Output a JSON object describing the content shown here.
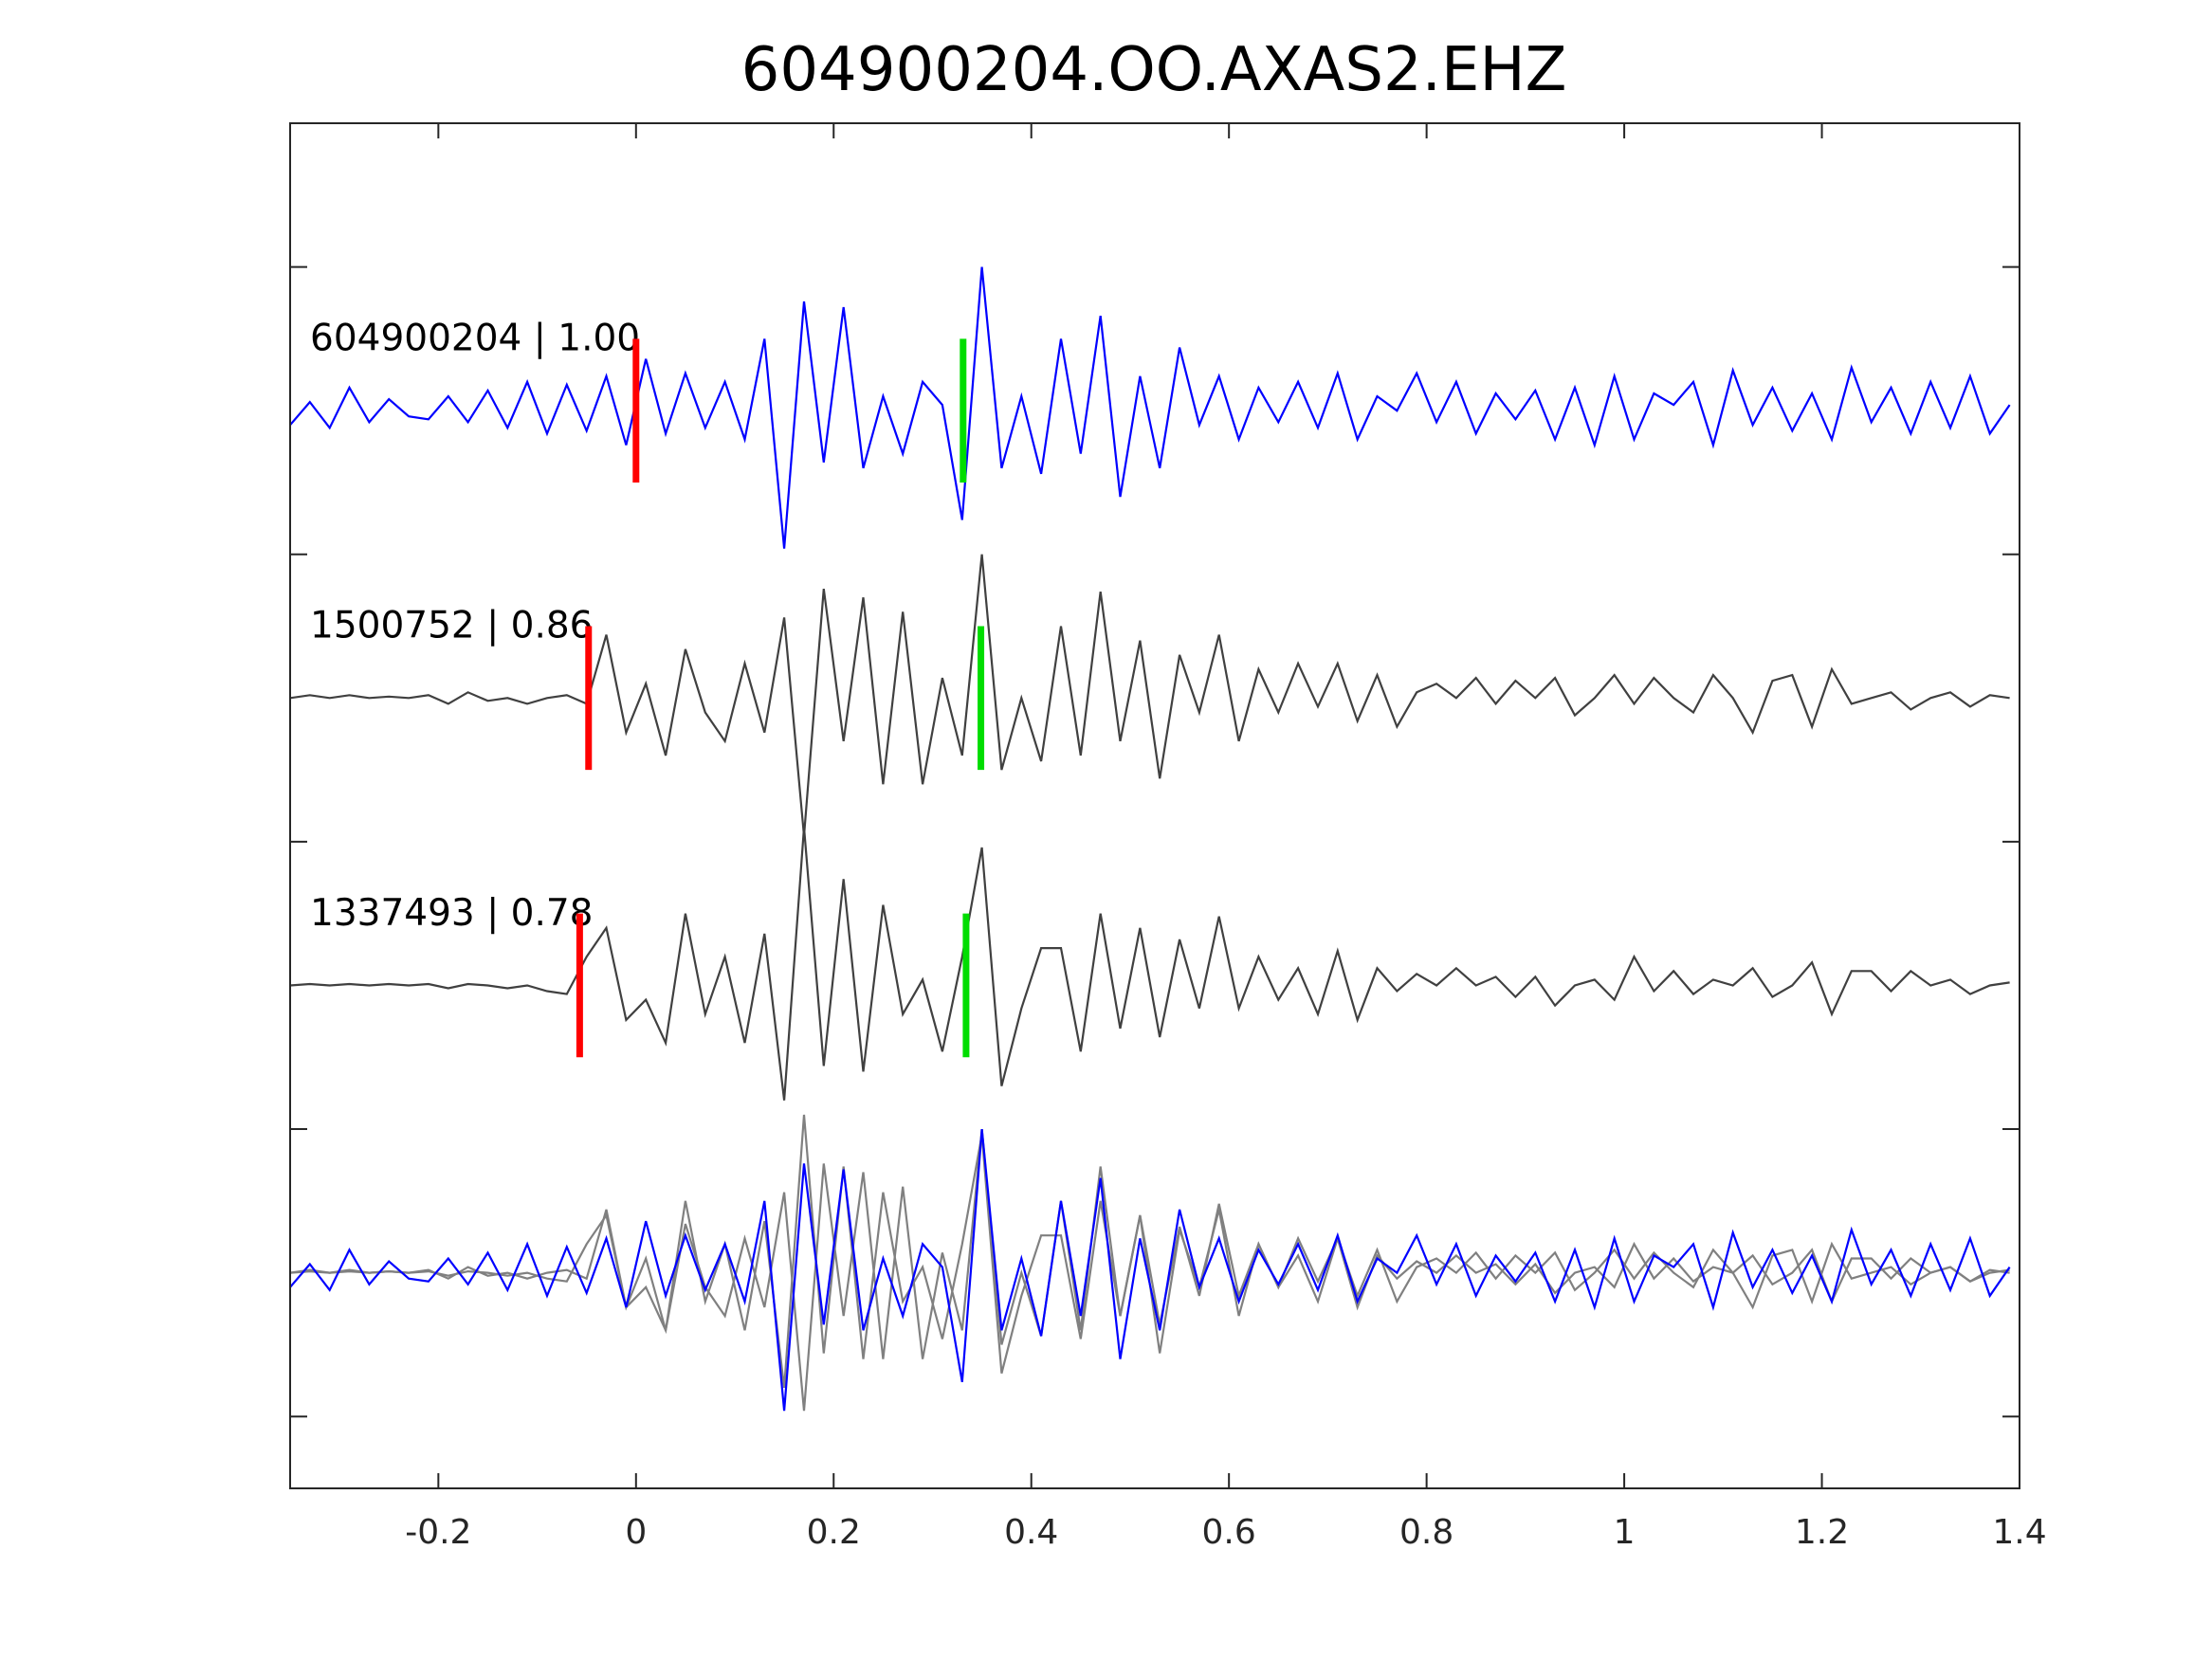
{
  "chart_data": {
    "type": "line",
    "title": "604900204.OO.AXAS2.EHZ",
    "xlabel": "",
    "ylabel": "",
    "xlim": [
      -0.35,
      1.4
    ],
    "ylim": [
      -3.75,
      1.0
    ],
    "xticks": [
      -0.2,
      0,
      0.2,
      0.4,
      0.6,
      0.8,
      1,
      1.2,
      1.4
    ],
    "xtick_labels": [
      "-0.2",
      "0",
      "0.2",
      "0.4",
      "0.6",
      "0.8",
      "1",
      "1.2",
      "1.4"
    ],
    "yticks": [
      0.5,
      -0.5,
      -1.5,
      -2.5,
      -3.5
    ],
    "grid": false,
    "t_start": -0.35,
    "t_step": 0.02,
    "colors": {
      "primary": "#0000ff",
      "neighbor": "#404040",
      "overlay_neighbor": "#808080",
      "p_pick": "#ff0000",
      "s_pick": "#00dd00"
    },
    "series": [
      {
        "name": "604900204 | 1.00",
        "offset": 0,
        "color": "#0000ff",
        "p_pick": 0.0,
        "s_pick": 0.331,
        "values": [
          -0.05,
          0.03,
          -0.06,
          0.08,
          -0.04,
          0.04,
          -0.02,
          -0.03,
          0.05,
          -0.04,
          0.07,
          -0.06,
          0.1,
          -0.08,
          0.09,
          -0.07,
          0.12,
          -0.12,
          0.18,
          -0.08,
          0.13,
          -0.06,
          0.1,
          -0.1,
          0.25,
          -0.48,
          0.38,
          -0.18,
          0.36,
          -0.2,
          0.05,
          -0.15,
          0.1,
          0.02,
          -0.38,
          0.5,
          -0.2,
          0.05,
          -0.22,
          0.25,
          -0.15,
          0.33,
          -0.3,
          0.12,
          -0.2,
          0.22,
          -0.05,
          0.12,
          -0.1,
          0.08,
          -0.04,
          0.1,
          -0.06,
          0.13,
          -0.1,
          0.05,
          0.0,
          0.13,
          -0.04,
          0.1,
          -0.08,
          0.06,
          -0.03,
          0.07,
          -0.1,
          0.08,
          -0.12,
          0.12,
          -0.1,
          0.06,
          0.02,
          0.1,
          -0.12,
          0.14,
          -0.05,
          0.08,
          -0.07,
          0.06,
          -0.1,
          0.15,
          -0.04,
          0.08,
          -0.08,
          0.1,
          -0.06,
          0.12,
          -0.08,
          0.02
        ]
      },
      {
        "name": "1500752 | 0.86",
        "offset": -1,
        "color": "#404040",
        "p_pick": -0.048,
        "s_pick": 0.349,
        "values": [
          0.0,
          0.01,
          0.0,
          0.01,
          0.0,
          0.005,
          0.0,
          0.01,
          -0.02,
          0.02,
          -0.01,
          0.0,
          -0.02,
          0.0,
          0.01,
          -0.02,
          0.22,
          -0.12,
          0.05,
          -0.2,
          0.17,
          -0.05,
          -0.15,
          0.12,
          -0.12,
          0.28,
          -0.48,
          0.38,
          -0.15,
          0.35,
          -0.3,
          0.3,
          -0.3,
          0.07,
          -0.2,
          0.5,
          -0.25,
          0.0,
          -0.22,
          0.25,
          -0.2,
          0.37,
          -0.15,
          0.2,
          -0.28,
          0.15,
          -0.05,
          0.22,
          -0.15,
          0.1,
          -0.05,
          0.12,
          -0.03,
          0.12,
          -0.08,
          0.08,
          -0.1,
          0.02,
          0.05,
          0.0,
          0.07,
          -0.02,
          0.06,
          0.0,
          0.07,
          -0.06,
          0.0,
          0.08,
          -0.02,
          0.07,
          0.0,
          -0.05,
          0.08,
          0.0,
          -0.12,
          0.06,
          0.08,
          -0.1,
          0.1,
          -0.02,
          0.0,
          0.02,
          -0.04,
          0.0,
          0.02,
          -0.03,
          0.01,
          0.0
        ]
      },
      {
        "name": "1337493 | 0.78",
        "offset": -2,
        "color": "#404040",
        "p_pick": -0.057,
        "s_pick": 0.334,
        "values": [
          0.0,
          0.005,
          0.0,
          0.005,
          0.0,
          0.005,
          0.0,
          0.005,
          -0.01,
          0.005,
          0.0,
          -0.01,
          0.0,
          -0.02,
          -0.03,
          0.1,
          0.2,
          -0.12,
          -0.05,
          -0.2,
          0.25,
          -0.1,
          0.1,
          -0.2,
          0.18,
          -0.4,
          0.55,
          -0.28,
          0.37,
          -0.3,
          0.28,
          -0.1,
          0.02,
          -0.23,
          0.1,
          0.48,
          -0.35,
          -0.08,
          0.13,
          0.13,
          -0.23,
          0.25,
          -0.15,
          0.2,
          -0.18,
          0.16,
          -0.08,
          0.24,
          -0.08,
          0.1,
          -0.05,
          0.06,
          -0.1,
          0.12,
          -0.12,
          0.06,
          -0.02,
          0.04,
          0.0,
          0.06,
          0.0,
          0.03,
          -0.04,
          0.03,
          -0.07,
          0.0,
          0.02,
          -0.05,
          0.1,
          -0.02,
          0.05,
          -0.03,
          0.02,
          0.0,
          0.06,
          -0.04,
          0.0,
          0.08,
          -0.1,
          0.05,
          0.05,
          -0.02,
          0.05,
          0.0,
          0.02,
          -0.03,
          0.0,
          0.01
        ]
      }
    ],
    "overlay_offset": -3
  }
}
